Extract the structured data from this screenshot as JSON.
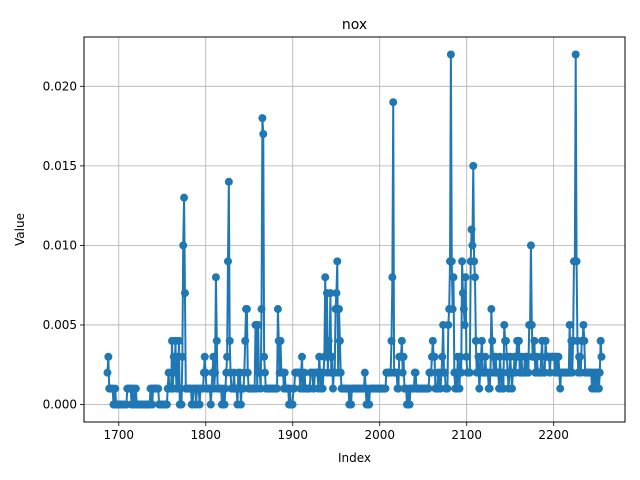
{
  "chart_data": {
    "type": "line",
    "title": "nox",
    "xlabel": "Index",
    "ylabel": "Value",
    "xlim": [
      1660,
      2282
    ],
    "ylim": [
      -0.0011,
      0.0231
    ],
    "grid": true,
    "x_ticks": [
      1700,
      1800,
      1900,
      2000,
      2100,
      2200
    ],
    "x_tick_labels": [
      "1700",
      "1800",
      "1900",
      "2000",
      "2100",
      "2200"
    ],
    "y_ticks": [
      0.0,
      0.005,
      0.01,
      0.015,
      0.02
    ],
    "y_tick_labels": [
      "0.000",
      "0.005",
      "0.010",
      "0.015",
      "0.020"
    ],
    "colors": {
      "series": "#1f77b4",
      "grid": "#b0b0b0"
    },
    "series": [
      {
        "marker": "circle",
        "x_start": 1687,
        "x_end": 2255,
        "values": [
          0.002,
          0.003,
          0.001,
          0.001,
          0.001,
          0.001,
          0.001,
          0.0,
          0.0,
          0.001,
          0.0,
          0.0,
          0.0,
          0.0,
          0.0,
          0.0,
          0.0,
          0.0,
          0.0,
          0.0,
          0.0,
          0.0,
          0.0,
          0.001,
          0.001,
          0.001,
          0.001,
          0.001,
          0.0,
          0.001,
          0.0,
          0.0,
          0.001,
          0.001,
          0.0,
          0.0,
          0.0,
          0.0,
          0.0,
          0.0,
          0.0,
          0.0,
          0.0,
          0.0,
          0.0,
          0.0,
          0.0,
          0.0,
          0.0,
          0.0,
          0.001,
          0.001,
          0.0,
          0.001,
          0.001,
          0.001,
          0.001,
          0.001,
          0.001,
          0.001,
          0.0,
          0.0,
          0.0,
          0.0,
          0.0,
          0.0,
          0.0,
          0.0,
          0.0,
          0.0,
          0.001,
          0.002,
          0.001,
          0.001,
          0.001,
          0.004,
          0.001,
          0.003,
          0.002,
          0.004,
          0.001,
          0.003,
          0.001,
          0.004,
          0.0,
          0.001,
          0.0,
          0.003,
          0.01,
          0.013,
          0.007,
          0.001,
          0.001,
          0.001,
          0.001,
          0.001,
          0.001,
          0.001,
          0.0,
          0.0,
          0.001,
          0.001,
          0.001,
          0.0,
          0.001,
          0.001,
          0.001,
          0.0,
          0.001,
          0.001,
          0.001,
          0.001,
          0.002,
          0.003,
          0.002,
          0.001,
          0.001,
          0.001,
          0.001,
          0.001,
          0.0,
          0.001,
          0.002,
          0.003,
          0.001,
          0.002,
          0.008,
          0.004,
          0.001,
          0.001,
          0.001,
          0.001,
          0.001,
          0.0,
          0.0,
          0.001,
          0.0,
          0.001,
          0.002,
          0.003,
          0.009,
          0.014,
          0.004,
          0.002,
          0.001,
          0.001,
          0.001,
          0.002,
          0.001,
          0.001,
          0.001,
          0.0,
          0.002,
          0.001,
          0.002,
          0.0,
          0.001,
          0.001,
          0.001,
          0.002,
          0.004,
          0.006,
          0.006,
          0.002,
          0.001,
          0.001,
          0.001,
          0.001,
          0.001,
          0.001,
          0.001,
          0.001,
          0.005,
          0.005,
          0.001,
          0.005,
          0.002,
          0.002,
          0.001,
          0.006,
          0.018,
          0.017,
          0.003,
          0.002,
          0.001,
          0.001,
          0.001,
          0.001,
          0.001,
          0.001,
          0.001,
          0.001,
          0.001,
          0.001,
          0.001,
          0.001,
          0.001,
          0.001,
          0.006,
          0.004,
          0.002,
          0.004,
          0.002,
          0.002,
          0.002,
          0.001,
          0.002,
          0.001,
          0.001,
          0.001,
          0.001,
          0.0,
          0.001,
          0.0,
          0.0,
          0.0,
          0.001,
          0.001,
          0.002,
          0.002,
          0.002,
          0.002,
          0.002,
          0.002,
          0.001,
          0.002,
          0.003,
          0.001,
          0.001,
          0.002,
          0.001,
          0.001,
          0.001,
          0.001,
          0.001,
          0.001,
          0.002,
          0.002,
          0.002,
          0.001,
          0.001,
          0.002,
          0.002,
          0.002,
          0.002,
          0.001,
          0.003,
          0.002,
          0.001,
          0.002,
          0.001,
          0.002,
          0.003,
          0.008,
          0.003,
          0.007,
          0.002,
          0.004,
          0.003,
          0.007,
          0.002,
          0.003,
          0.001,
          0.002,
          0.002,
          0.006,
          0.007,
          0.009,
          0.002,
          0.006,
          0.004,
          0.002,
          0.001,
          0.001,
          0.001,
          0.001,
          0.001,
          0.001,
          0.001,
          0.001,
          0.001,
          0.0,
          0.001,
          0.0,
          0.001,
          0.001,
          0.001,
          0.001,
          0.001,
          0.001,
          0.001,
          0.001,
          0.001,
          0.001,
          0.001,
          0.001,
          0.001,
          0.001,
          0.001,
          0.002,
          0.001,
          0.0,
          0.001,
          0.0,
          0.0,
          0.001,
          0.001,
          0.001,
          0.001,
          0.001,
          0.001,
          0.001,
          0.001,
          0.001,
          0.001,
          0.001,
          0.001,
          0.001,
          0.001,
          0.001,
          0.001,
          0.001,
          0.001,
          0.001,
          0.002,
          0.002,
          0.002,
          0.002,
          0.002,
          0.002,
          0.004,
          0.008,
          0.019,
          0.002,
          0.002,
          0.002,
          0.002,
          0.001,
          0.001,
          0.003,
          0.003,
          0.003,
          0.004,
          0.002,
          0.003,
          0.001,
          0.001,
          0.001,
          0.0,
          0.0,
          0.001,
          0.0,
          0.001,
          0.001,
          0.001,
          0.001,
          0.001,
          0.002,
          0.002,
          0.001,
          0.001,
          0.001,
          0.001,
          0.001,
          0.001,
          0.001,
          0.001,
          0.001,
          0.001,
          0.001,
          0.001,
          0.001,
          0.001,
          0.001,
          0.002,
          0.002,
          0.002,
          0.003,
          0.004,
          0.003,
          0.003,
          0.001,
          0.001,
          0.001,
          0.002,
          0.002,
          0.001,
          0.001,
          0.002,
          0.003,
          0.005,
          0.002,
          0.002,
          0.001,
          0.001,
          0.001,
          0.005,
          0.006,
          0.009,
          0.022,
          0.009,
          0.006,
          0.008,
          0.002,
          0.001,
          0.002,
          0.001,
          0.003,
          0.002,
          0.001,
          0.003,
          0.002,
          0.009,
          0.007,
          0.006,
          0.005,
          0.008,
          0.003,
          0.002,
          0.002,
          0.002,
          0.002,
          0.009,
          0.011,
          0.01,
          0.015,
          0.009,
          0.008,
          0.004,
          0.002,
          0.002,
          0.003,
          0.001,
          0.002,
          0.003,
          0.004,
          0.002,
          0.002,
          0.002,
          0.003,
          0.002,
          0.002,
          0.002,
          0.001,
          0.001,
          0.002,
          0.006,
          0.004,
          0.003,
          0.002,
          0.002,
          0.003,
          0.002,
          0.002,
          0.002,
          0.001,
          0.003,
          0.002,
          0.001,
          0.002,
          0.001,
          0.005,
          0.004,
          0.004,
          0.003,
          0.002,
          0.001,
          0.002,
          0.003,
          0.002,
          0.001,
          0.002,
          0.002,
          0.003,
          0.002,
          0.003,
          0.004,
          0.003,
          0.004,
          0.002,
          0.002,
          0.003,
          0.002,
          0.002,
          0.002,
          0.003,
          0.002,
          0.003,
          0.003,
          0.002,
          0.005,
          0.005,
          0.01,
          0.005,
          0.003,
          0.003,
          0.004,
          0.002,
          0.002,
          0.003,
          0.002,
          0.002,
          0.002,
          0.002,
          0.003,
          0.004,
          0.002,
          0.002,
          0.002,
          0.004,
          0.003,
          0.003,
          0.003,
          0.003,
          0.002,
          0.003,
          0.003,
          0.003,
          0.003,
          0.003,
          0.002,
          0.003,
          0.003,
          0.002,
          0.003,
          0.002,
          0.001,
          0.002,
          0.002,
          0.002,
          0.002,
          0.002,
          0.002,
          0.002,
          0.002,
          0.002,
          0.002,
          0.005,
          0.002,
          0.004,
          0.002,
          0.004,
          0.009,
          0.009,
          0.022,
          0.009,
          0.004,
          0.002,
          0.003,
          0.003,
          0.002,
          0.004,
          0.004,
          0.005,
          0.004,
          0.002,
          0.002,
          0.002,
          0.002,
          0.002,
          0.002,
          0.002,
          0.002,
          0.001,
          0.002,
          0.001,
          0.002,
          0.002,
          0.001,
          0.002,
          0.002,
          0.001,
          0.002,
          0.004,
          0.003
        ]
      }
    ]
  }
}
